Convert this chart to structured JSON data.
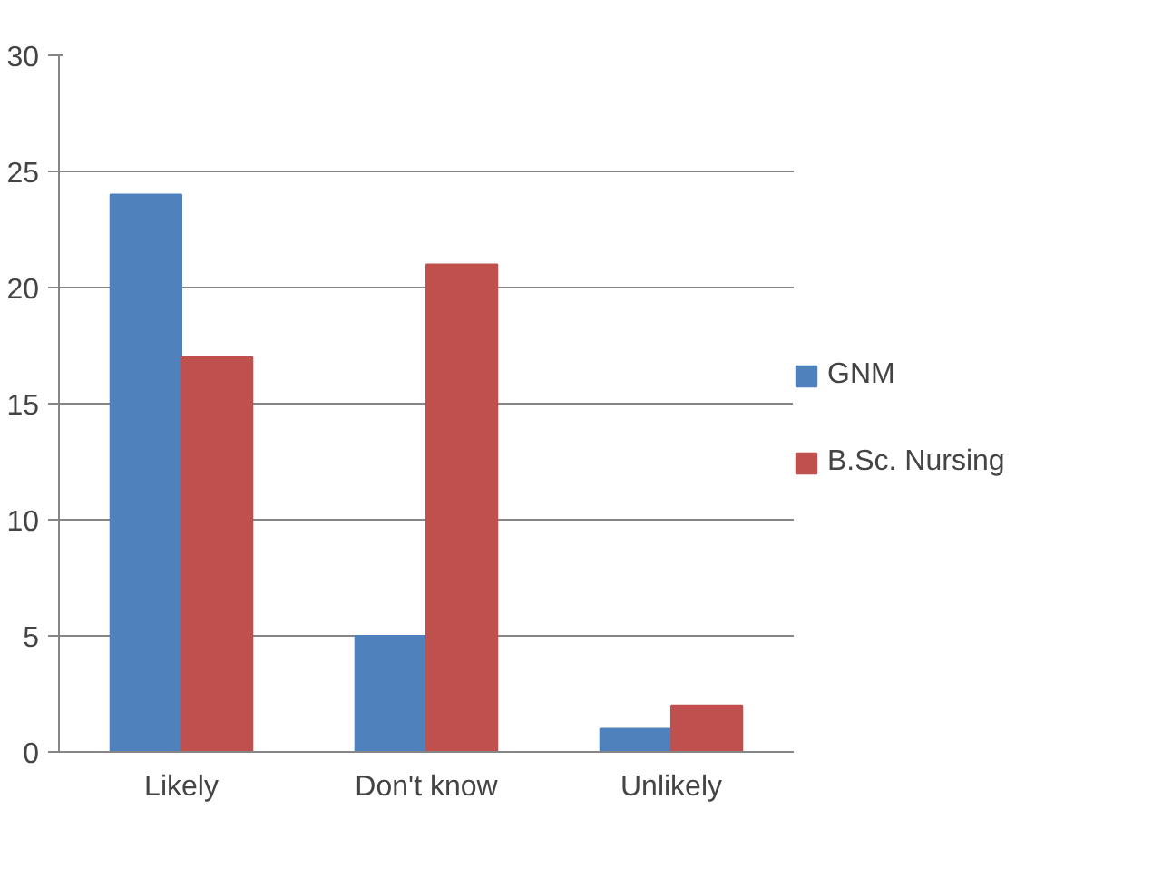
{
  "chart_data": {
    "type": "bar",
    "categories": [
      "Likely",
      "Don't know",
      "Unlikely"
    ],
    "series": [
      {
        "name": "GNM",
        "color": "#4f81bd",
        "values": [
          24,
          5,
          1
        ]
      },
      {
        "name": "B.Sc. Nursing",
        "color": "#c0504d",
        "values": [
          17,
          21,
          2
        ]
      }
    ],
    "ylim": [
      0,
      30
    ],
    "yticks": [
      0,
      5,
      10,
      15,
      20,
      25,
      30
    ],
    "grid": "y",
    "legend": "right"
  }
}
